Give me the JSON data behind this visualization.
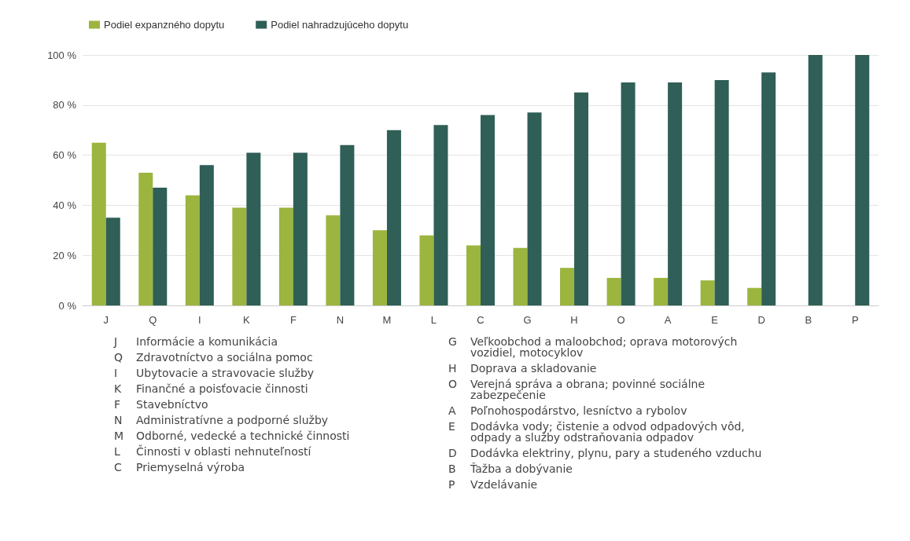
{
  "chart_data": {
    "type": "bar",
    "categories": [
      "J",
      "Q",
      "I",
      "K",
      "F",
      "N",
      "M",
      "L",
      "C",
      "G",
      "H",
      "O",
      "A",
      "E",
      "D",
      "B",
      "P"
    ],
    "series": [
      {
        "name": "Podiel expanzného dopytu",
        "color": "#9bb53f",
        "values": [
          65,
          53,
          44,
          39,
          39,
          36,
          30,
          28,
          24,
          23,
          15,
          11,
          11,
          10,
          7,
          0,
          0
        ]
      },
      {
        "name": "Podiel nahradzujúceho dopytu",
        "color": "#2f5f57",
        "values": [
          35,
          47,
          56,
          61,
          61,
          64,
          70,
          72,
          76,
          77,
          85,
          89,
          89,
          90,
          93,
          100,
          100
        ]
      }
    ],
    "ylim": [
      0,
      100
    ],
    "yticks": [
      {
        "value": 0,
        "label": "0 %"
      },
      {
        "value": 20,
        "label": "20 %"
      },
      {
        "value": 40,
        "label": "40 %"
      },
      {
        "value": 60,
        "label": "60 %"
      },
      {
        "value": 80,
        "label": "80 %"
      },
      {
        "value": 100,
        "label": "100 %"
      }
    ],
    "grid": "y",
    "legend": "top left",
    "annotations": [
      "J Informácie a komunikácia",
      "Q Zdravotníctvo a sociálna pomoc",
      "I Ubytovacie a stravovacie služby",
      "K Finančné a poisťovacie činnosti",
      "F Stavebníctvo",
      "N Administratívne a podporné služby",
      "M Odborné, vedecké a technické činnosti",
      "L Činnosti v oblasti nehnuteľností",
      "C Priemyselná výroba",
      "G Veľkoobchod a maloobchod; oprava motorových vozidiel, motocyklov",
      "H Doprava a skladovanie",
      "O Verejná správa a obrana; povinné sociálne zabezpečenie",
      "A Poľnohospodárstvo, lesníctvo a rybolov",
      "E Dodávka vody; čistenie a odvod odpadových vôd, odpady a služby odstraňovania odpadov",
      "D Dodávka elektriny, plynu, pary a studeného vzduchu",
      "B Ťažba a dobývanie",
      "P Vzdelávanie"
    ]
  }
}
